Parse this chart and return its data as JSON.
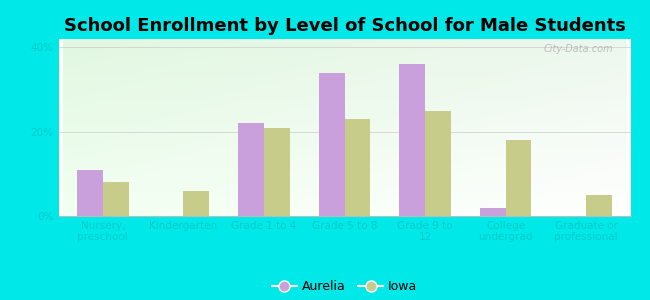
{
  "title": "School Enrollment by Level of School for Male Students",
  "categories": [
    "Nursery,\npreschool",
    "Kindergarten",
    "Grade 1 to 4",
    "Grade 5 to 8",
    "Grade 9 to\n12",
    "College\nundergrad",
    "Graduate or\nprofessional"
  ],
  "aurelia": [
    11,
    0,
    22,
    34,
    36,
    2,
    0
  ],
  "iowa": [
    8,
    6,
    21,
    23,
    25,
    18,
    5
  ],
  "aurelia_color": "#c9a0dc",
  "iowa_color": "#c8cc8a",
  "bg_color": "#00e8e8",
  "ylim": [
    0,
    42
  ],
  "yticks": [
    0,
    20,
    40
  ],
  "ytick_labels": [
    "0%",
    "20%",
    "40%"
  ],
  "bar_width": 0.32,
  "legend_labels": [
    "Aurelia",
    "Iowa"
  ],
  "title_fontsize": 13,
  "tick_fontsize": 7.5,
  "legend_fontsize": 9,
  "axis_label_color": "#00cccc",
  "watermark": "City-Data.com"
}
